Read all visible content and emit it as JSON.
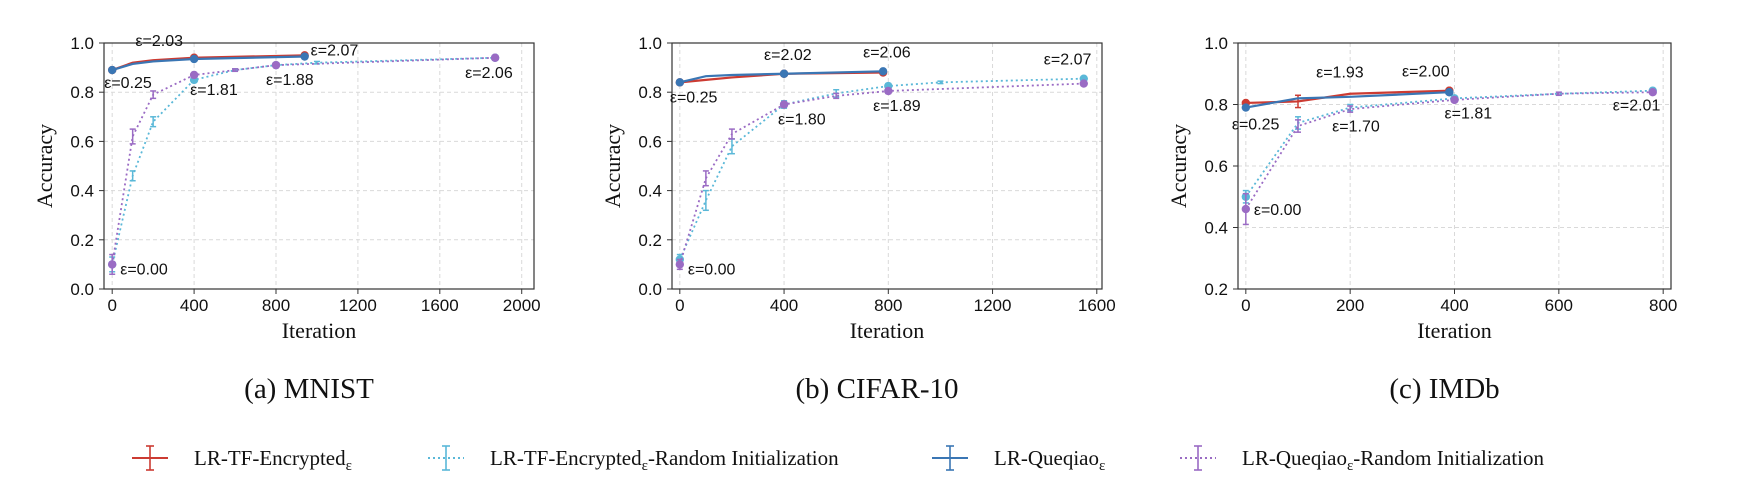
{
  "colors": {
    "red": "#cc3b32",
    "blue": "#3a76b4",
    "cyan": "#5ab8d8",
    "purple": "#9a6bc4",
    "grid": "#d9d9d9"
  },
  "legend": {
    "items": [
      {
        "label": "LR-TF-Encrypted",
        "sub": "ε",
        "suffix": "",
        "color": "#cc3b32",
        "dash": false
      },
      {
        "label": "LR-TF-Encrypted",
        "sub": "ε",
        "suffix": "-Random Initialization",
        "color": "#5ab8d8",
        "dash": true
      },
      {
        "label": "LR-Queqiao",
        "sub": "ε",
        "suffix": "",
        "color": "#3a76b4",
        "dash": false
      },
      {
        "label": "LR-Queqiao",
        "sub": "ε",
        "suffix": "-Random Initialization",
        "color": "#9a6bc4",
        "dash": true
      }
    ]
  },
  "chart_data": [
    {
      "type": "line",
      "caption": "(a) MNIST",
      "xlabel": "Iteration",
      "ylabel": "Accuracy",
      "xlim": [
        -40,
        2060
      ],
      "ylim": [
        0.0,
        1.0
      ],
      "xticks": [
        0,
        400,
        800,
        1200,
        1600,
        2000
      ],
      "yticks": [
        0.0,
        0.2,
        0.4,
        0.6,
        0.8,
        1.0
      ],
      "grid": true,
      "series": [
        {
          "name": "LR-TF-Encrypted",
          "color": "#cc3b32",
          "dash": false,
          "x": [
            0,
            100,
            200,
            400,
            940
          ],
          "y": [
            0.89,
            0.92,
            0.93,
            0.94,
            0.95
          ],
          "err": [
            0,
            0,
            0,
            0,
            0
          ]
        },
        {
          "name": "LR-Queqiao",
          "color": "#3a76b4",
          "dash": false,
          "x": [
            0,
            100,
            200,
            400,
            940
          ],
          "y": [
            0.89,
            0.915,
            0.925,
            0.935,
            0.945
          ],
          "err": [
            0,
            0,
            0,
            0,
            0
          ]
        },
        {
          "name": "LR-TF-Encrypted-Random Initialization",
          "color": "#5ab8d8",
          "dash": true,
          "x": [
            0,
            100,
            200,
            400,
            600,
            800,
            1000,
            1870
          ],
          "y": [
            0.1,
            0.46,
            0.68,
            0.85,
            0.89,
            0.91,
            0.92,
            0.94
          ],
          "err": [
            0.03,
            0.02,
            0.02,
            0.01,
            0.005,
            0.005,
            0.005,
            0.005
          ]
        },
        {
          "name": "LR-Queqiao-Random Initialization",
          "color": "#9a6bc4",
          "dash": true,
          "x": [
            0,
            100,
            200,
            400,
            600,
            800,
            1870
          ],
          "y": [
            0.1,
            0.62,
            0.79,
            0.87,
            0.89,
            0.91,
            0.94
          ],
          "err": [
            0.04,
            0.03,
            0.015,
            0.01,
            0.005,
            0.005,
            0.005
          ]
        }
      ],
      "annotations": [
        {
          "text": "ε=0.25",
          "x": 0,
          "y": 0.89,
          "dx": -8,
          "dy": 18
        },
        {
          "text": "ε=2.03",
          "x": 260,
          "y": 0.94,
          "dx": -30,
          "dy": -12
        },
        {
          "text": "ε=2.07",
          "x": 940,
          "y": 0.95,
          "dx": 6,
          "dy": 0
        },
        {
          "text": "ε=1.81",
          "x": 400,
          "y": 0.87,
          "dx": -4,
          "dy": 20
        },
        {
          "text": "ε=1.88",
          "x": 800,
          "y": 0.91,
          "dx": -10,
          "dy": 20
        },
        {
          "text": "ε=2.06",
          "x": 1870,
          "y": 0.94,
          "dx": -30,
          "dy": 20
        },
        {
          "text": "ε=0.00",
          "x": 0,
          "y": 0.1,
          "dx": 8,
          "dy": 10
        }
      ]
    },
    {
      "type": "line",
      "caption": "(b) CIFAR-10",
      "xlabel": "Iteration",
      "ylabel": "Accuracy",
      "xlim": [
        -30,
        1620
      ],
      "ylim": [
        0.0,
        1.0
      ],
      "xticks": [
        0,
        400,
        800,
        1200,
        1600
      ],
      "yticks": [
        0.0,
        0.2,
        0.4,
        0.6,
        0.8,
        1.0
      ],
      "grid": true,
      "series": [
        {
          "name": "LR-TF-Encrypted",
          "color": "#cc3b32",
          "dash": false,
          "x": [
            0,
            100,
            200,
            400,
            780
          ],
          "y": [
            0.84,
            0.85,
            0.86,
            0.875,
            0.88
          ],
          "err": [
            0,
            0,
            0,
            0,
            0
          ]
        },
        {
          "name": "LR-Queqiao",
          "color": "#3a76b4",
          "dash": false,
          "x": [
            0,
            100,
            200,
            400,
            780
          ],
          "y": [
            0.84,
            0.865,
            0.87,
            0.875,
            0.885
          ],
          "err": [
            0,
            0,
            0,
            0,
            0
          ]
        },
        {
          "name": "LR-TF-Encrypted-Random Initialization",
          "color": "#5ab8d8",
          "dash": true,
          "x": [
            0,
            100,
            200,
            400,
            600,
            800,
            1000,
            1550
          ],
          "y": [
            0.12,
            0.36,
            0.58,
            0.75,
            0.795,
            0.825,
            0.84,
            0.855
          ],
          "err": [
            0.02,
            0.04,
            0.03,
            0.015,
            0.015,
            0.01,
            0.005,
            0.005
          ]
        },
        {
          "name": "LR-Queqiao-Random Initialization",
          "color": "#9a6bc4",
          "dash": true,
          "x": [
            0,
            100,
            200,
            400,
            600,
            800,
            1550
          ],
          "y": [
            0.1,
            0.45,
            0.63,
            0.75,
            0.785,
            0.805,
            0.835
          ],
          "err": [
            0.02,
            0.03,
            0.02,
            0.01,
            0.01,
            0.01,
            0.005
          ]
        }
      ],
      "annotations": [
        {
          "text": "ε=0.25",
          "x": 0,
          "y": 0.84,
          "dx": -10,
          "dy": 20
        },
        {
          "text": "ε=2.02",
          "x": 400,
          "y": 0.875,
          "dx": -20,
          "dy": -14
        },
        {
          "text": "ε=2.06",
          "x": 780,
          "y": 0.885,
          "dx": -20,
          "dy": -14
        },
        {
          "text": "ε=2.07",
          "x": 1550,
          "y": 0.855,
          "dx": -40,
          "dy": -14
        },
        {
          "text": "ε=1.80",
          "x": 400,
          "y": 0.75,
          "dx": -6,
          "dy": 20
        },
        {
          "text": "ε=1.89",
          "x": 780,
          "y": 0.805,
          "dx": -10,
          "dy": 20
        },
        {
          "text": "ε=0.00",
          "x": 0,
          "y": 0.1,
          "dx": 8,
          "dy": 10
        }
      ]
    },
    {
      "type": "line",
      "caption": "(c) IMDb",
      "xlabel": "Iteration",
      "ylabel": "Accuracy",
      "xlim": [
        -15,
        815
      ],
      "ylim": [
        0.2,
        1.0
      ],
      "xticks": [
        0,
        200,
        400,
        600,
        800
      ],
      "yticks": [
        0.2,
        0.4,
        0.6,
        0.8,
        1.0
      ],
      "grid": true,
      "series": [
        {
          "name": "LR-TF-Encrypted",
          "color": "#cc3b32",
          "dash": false,
          "x": [
            0,
            100,
            200,
            390
          ],
          "y": [
            0.805,
            0.81,
            0.835,
            0.845
          ],
          "err": [
            0,
            0.02,
            0,
            0
          ]
        },
        {
          "name": "LR-Queqiao",
          "color": "#3a76b4",
          "dash": false,
          "x": [
            0,
            100,
            200,
            390
          ],
          "y": [
            0.79,
            0.82,
            0.825,
            0.84
          ],
          "err": [
            0,
            0,
            0,
            0
          ]
        },
        {
          "name": "LR-TF-Encrypted-Random Initialization",
          "color": "#5ab8d8",
          "dash": true,
          "x": [
            0,
            100,
            200,
            400,
            600,
            780
          ],
          "y": [
            0.5,
            0.74,
            0.79,
            0.82,
            0.835,
            0.845
          ],
          "err": [
            0.02,
            0.02,
            0.01,
            0.005,
            0.005,
            0.005
          ]
        },
        {
          "name": "LR-Queqiao-Random Initialization",
          "color": "#9a6bc4",
          "dash": true,
          "x": [
            0,
            100,
            200,
            400,
            600,
            780
          ],
          "y": [
            0.46,
            0.73,
            0.785,
            0.815,
            0.835,
            0.84
          ],
          "err": [
            0.05,
            0.02,
            0.01,
            0.005,
            0.005,
            0.005
          ]
        }
      ],
      "annotations": [
        {
          "text": "ε=0.25",
          "x": 0,
          "y": 0.79,
          "dx": -14,
          "dy": 22
        },
        {
          "text": "ε=1.93",
          "x": 150,
          "y": 0.835,
          "dx": -8,
          "dy": -16
        },
        {
          "text": "ε=2.00",
          "x": 330,
          "y": 0.845,
          "dx": -16,
          "dy": -14
        },
        {
          "text": "ε=1.70",
          "x": 200,
          "y": 0.79,
          "dx": -18,
          "dy": 24
        },
        {
          "text": "ε=1.81",
          "x": 400,
          "y": 0.82,
          "dx": -10,
          "dy": 20
        },
        {
          "text": "ε=2.01",
          "x": 780,
          "y": 0.845,
          "dx": -40,
          "dy": 20
        },
        {
          "text": "ε=0.00",
          "x": 0,
          "y": 0.46,
          "dx": 8,
          "dy": 6
        }
      ]
    }
  ]
}
